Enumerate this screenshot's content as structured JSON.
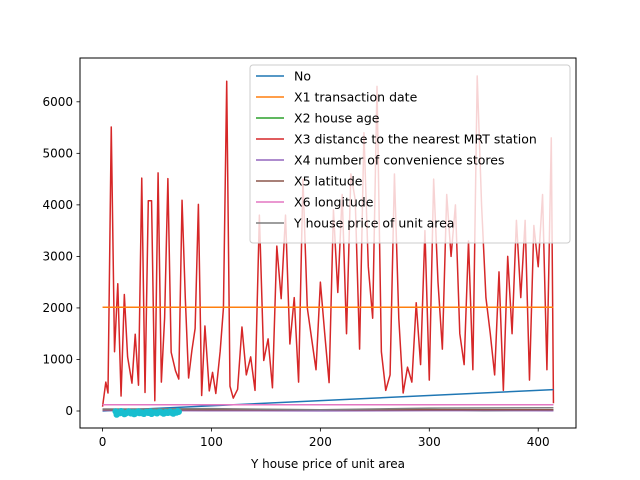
{
  "chart_data": {
    "type": "line",
    "title": "",
    "xlabel": "Y house price of unit area",
    "ylabel": "",
    "xlim": [
      -20.7,
      434.7
    ],
    "ylim": [
      -330,
      6850
    ],
    "x_ticks": [
      0,
      100,
      200,
      300,
      400
    ],
    "y_ticks": [
      0,
      1000,
      2000,
      3000,
      4000,
      5000,
      6000
    ],
    "grid": false,
    "legend_position": "top-right",
    "colors": {
      "No": "#1f77b4",
      "X1 transaction date": "#ff7f0e",
      "X2 house age": "#2ca02c",
      "X3 distance to the nearest MRT station": "#d62728",
      "X4 number of convenience stores": "#9467bd",
      "X5 latitude": "#8c564b",
      "X6 longitude": "#e377c2",
      "Y house price of unit area": "#7f7f7f",
      "extra": "#17becf"
    },
    "series": [
      {
        "name": "No",
        "type": "line",
        "x": [
          0,
          414
        ],
        "y": [
          1,
          414
        ]
      },
      {
        "name": "X1 transaction date",
        "type": "line",
        "x": [
          0,
          414
        ],
        "y": [
          2013,
          2013
        ]
      },
      {
        "name": "X2 house age",
        "type": "line",
        "x": [
          0,
          50,
          100,
          150,
          200,
          250,
          300,
          350,
          414
        ],
        "y": [
          32,
          13,
          20,
          8,
          25,
          16,
          30,
          5,
          18
        ]
      },
      {
        "name": "X3 distance to the nearest MRT station",
        "type": "line",
        "x": [
          0,
          3,
          5,
          8,
          11,
          14,
          17,
          20,
          23,
          27,
          30,
          33,
          36,
          39,
          42,
          45,
          48,
          51,
          54,
          57,
          60,
          63,
          67,
          70,
          73,
          76,
          79,
          82,
          85,
          88,
          91,
          94,
          98,
          101,
          104,
          108,
          111,
          114,
          117,
          120,
          124,
          128,
          132,
          136,
          140,
          144,
          148,
          152,
          156,
          160,
          164,
          168,
          172,
          176,
          180,
          184,
          188,
          192,
          196,
          200,
          204,
          208,
          212,
          216,
          220,
          224,
          228,
          232,
          236,
          240,
          244,
          248,
          252,
          256,
          260,
          264,
          268,
          272,
          276,
          280,
          284,
          288,
          292,
          296,
          300,
          304,
          308,
          312,
          316,
          320,
          324,
          328,
          332,
          336,
          340,
          344,
          348,
          352,
          356,
          360,
          364,
          368,
          372,
          376,
          380,
          384,
          388,
          392,
          396,
          400,
          404,
          408,
          412,
          414
        ],
        "y": [
          84,
          560,
          350,
          5510,
          1150,
          2470,
          290,
          2260,
          1050,
          540,
          1490,
          500,
          4520,
          360,
          4080,
          4080,
          200,
          4620,
          560,
          1810,
          4510,
          1140,
          780,
          620,
          4090,
          2180,
          640,
          1170,
          1600,
          4010,
          300,
          1650,
          390,
          750,
          340,
          1160,
          2000,
          6400,
          480,
          250,
          420,
          1630,
          700,
          1050,
          400,
          3800,
          980,
          1400,
          450,
          3200,
          2180,
          3800,
          1300,
          2200,
          560,
          4500,
          2000,
          1400,
          800,
          2500,
          1500,
          550,
          3900,
          2300,
          4200,
          1500,
          4600,
          4100,
          1200,
          5400,
          2800,
          1800,
          6300,
          1150,
          400,
          700,
          4600,
          1800,
          350,
          850,
          560,
          2100,
          900,
          3500,
          600,
          4500,
          2500,
          1200,
          4200,
          3000,
          4000,
          1500,
          900,
          3300,
          800,
          6500,
          4000,
          2200,
          1500,
          700,
          2700,
          400,
          3000,
          1500,
          3700,
          2200,
          3700,
          600,
          3600,
          2800,
          4200,
          800,
          5300,
          150
        ],
        "color_key": "X3 distance to the nearest MRT station"
      },
      {
        "name": "X4 number of convenience stores",
        "type": "line",
        "x": [
          0,
          100,
          200,
          300,
          414
        ],
        "y": [
          10,
          6,
          3,
          8,
          5
        ]
      },
      {
        "name": "X5 latitude",
        "type": "line",
        "x": [
          0,
          414
        ],
        "y": [
          25,
          25
        ]
      },
      {
        "name": "X6 longitude",
        "type": "line",
        "x": [
          0,
          414
        ],
        "y": [
          121.5,
          121.5
        ]
      },
      {
        "name": "Y house price of unit area",
        "type": "line",
        "x": [
          0,
          100,
          200,
          300,
          414
        ],
        "y": [
          38,
          45,
          25,
          55,
          63
        ]
      }
    ],
    "scatter": {
      "color_key": "extra",
      "x": [
        12,
        14,
        16,
        18,
        20,
        22,
        24,
        26,
        28,
        30,
        32,
        34,
        36,
        38,
        40,
        42,
        44,
        46,
        48,
        50,
        52,
        54,
        56,
        58,
        60,
        62,
        64,
        66,
        68,
        70,
        13,
        17,
        21,
        25,
        29,
        33,
        37,
        41,
        45,
        49,
        53,
        57,
        61,
        65,
        69
      ],
      "y": [
        -10,
        -30,
        -40,
        -20,
        -60,
        -35,
        -10,
        -45,
        -25,
        -50,
        -15,
        -40,
        -30,
        -55,
        -20,
        -35,
        -10,
        -40,
        -25,
        -45,
        -15,
        -30,
        -50,
        -20,
        -35,
        -10,
        -40,
        -25,
        -30,
        -15,
        -70,
        -5,
        -50,
        -25,
        -60,
        -10,
        -45,
        -20,
        -55,
        -30,
        -15,
        -40,
        -25,
        -50,
        -5
      ]
    }
  }
}
